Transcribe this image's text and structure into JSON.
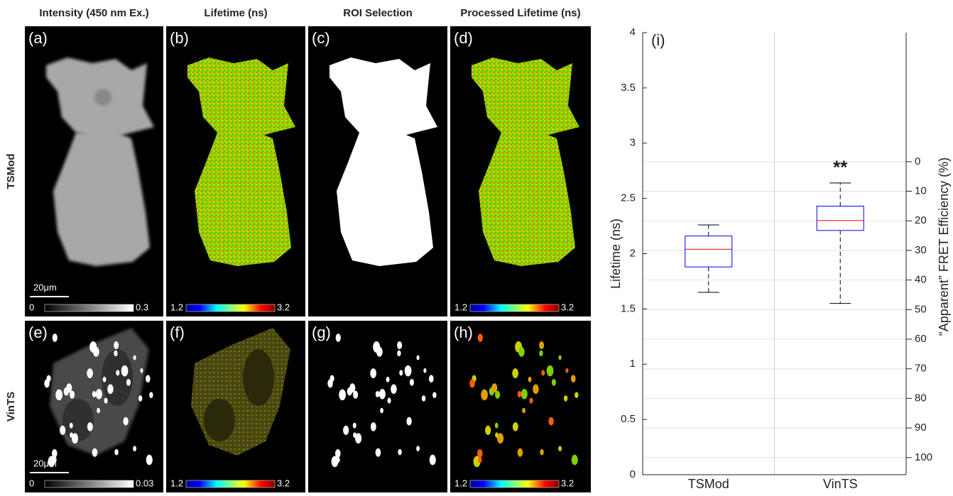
{
  "figure": {
    "column_headers": [
      "Intensity (450 nm Ex.)",
      "Lifetime (ns)",
      "ROI Selection",
      "Processed Lifetime (ns)"
    ],
    "rows": [
      {
        "label": "TSMod",
        "scale_bar": "20μm",
        "panels": [
          {
            "label": "(a)",
            "colorbar": [
              "0",
              "0.3"
            ]
          },
          {
            "label": "(b)",
            "colorbar": [
              "1.2",
              "3.2"
            ]
          },
          {
            "label": "(c)"
          },
          {
            "label": "(d)",
            "colorbar": [
              "1.2",
              "3.2"
            ]
          }
        ]
      },
      {
        "label": "VinTS",
        "scale_bar": "20μm",
        "panels": [
          {
            "label": "(e)",
            "colorbar": [
              "0",
              "0.03"
            ]
          },
          {
            "label": "(f)",
            "colorbar": [
              "1.2",
              "3.2"
            ]
          },
          {
            "label": "(g)"
          },
          {
            "label": "(h)",
            "colorbar": [
              "1.2",
              "3.2"
            ]
          }
        ]
      }
    ]
  },
  "chart_data": {
    "type": "box",
    "panel_label": "(i)",
    "y_label": "Lifetime (ns)",
    "y2_label": "“Apparent” FRET Efficiency (%)",
    "annotation": "**",
    "categories": [
      "TSMod",
      "VinTS"
    ],
    "boxes": [
      {
        "min": 1.65,
        "q1": 1.88,
        "median": 2.04,
        "q3": 2.16,
        "max": 2.26
      },
      {
        "min": 1.55,
        "q1": 2.21,
        "median": 2.3,
        "q3": 2.43,
        "max": 2.64
      }
    ],
    "box_color": "#0000ff",
    "median_color": "#ff0000",
    "whisker_color": "#000000",
    "ylim": [
      0,
      4
    ],
    "yticks": [
      0,
      0.5,
      1,
      1.5,
      2,
      2.5,
      3,
      3.5,
      4
    ],
    "y2lim": [
      105.8,
      -43.6
    ],
    "y2ticks": [
      0,
      10,
      20,
      30,
      40,
      50,
      60,
      70,
      80,
      90,
      100
    ],
    "grid": true
  }
}
